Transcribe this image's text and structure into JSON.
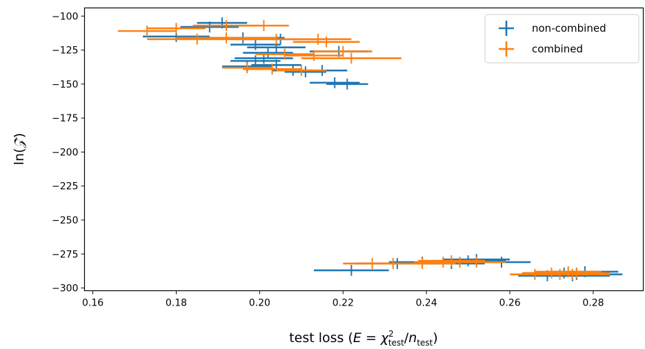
{
  "chart_data": {
    "type": "scatter",
    "title": "",
    "xlabel": {
      "prefix": "test loss (",
      "E": "E",
      "eq": " = ",
      "chi": "χ",
      "sup": "2",
      "sub1": "test",
      "slash": "/",
      "n": "n",
      "sub2": "test",
      "suffix": ")"
    },
    "ylabel": {
      "prefix": "ln(",
      "Z": "𝒵",
      "suffix": ")"
    },
    "xlim": [
      0.158,
      0.292
    ],
    "ylim": [
      -302,
      -94
    ],
    "xticks": [
      0.16,
      0.18,
      0.2,
      0.22,
      0.24,
      0.26,
      0.28
    ],
    "xtick_labels": [
      "0.16",
      "0.18",
      "0.20",
      "0.22",
      "0.24",
      "0.26",
      "0.28"
    ],
    "yticks": [
      -100,
      -125,
      -150,
      -175,
      -200,
      -225,
      -250,
      -275,
      -300
    ],
    "ytick_labels": [
      "−100",
      "−125",
      "−150",
      "−175",
      "−200",
      "−225",
      "−250",
      "−275",
      "−300"
    ],
    "grid": false,
    "legend_position": "top-right",
    "series": [
      {
        "name": "non-combined",
        "color": "#1f77b4",
        "points": [
          {
            "x": 0.191,
            "y": -105,
            "xerr": 0.006,
            "yerr": 2
          },
          {
            "x": 0.188,
            "y": -108,
            "xerr": 0.007,
            "yerr": 2
          },
          {
            "x": 0.18,
            "y": -115,
            "xerr": 0.008,
            "yerr": 2
          },
          {
            "x": 0.196,
            "y": -116,
            "xerr": 0.01,
            "yerr": 2
          },
          {
            "x": 0.205,
            "y": -117,
            "xerr": 0.009,
            "yerr": 2
          },
          {
            "x": 0.199,
            "y": -121,
            "xerr": 0.006,
            "yerr": 2
          },
          {
            "x": 0.204,
            "y": -123,
            "xerr": 0.007,
            "yerr": 2
          },
          {
            "x": 0.219,
            "y": -126,
            "xerr": 0.007,
            "yerr": 2
          },
          {
            "x": 0.202,
            "y": -127,
            "xerr": 0.006,
            "yerr": 2
          },
          {
            "x": 0.201,
            "y": -131,
            "xerr": 0.007,
            "yerr": 2
          },
          {
            "x": 0.199,
            "y": -133,
            "xerr": 0.006,
            "yerr": 2
          },
          {
            "x": 0.197,
            "y": -137,
            "xerr": 0.006,
            "yerr": 2
          },
          {
            "x": 0.204,
            "y": -136,
            "xerr": 0.006,
            "yerr": 2
          },
          {
            "x": 0.208,
            "y": -140,
            "xerr": 0.005,
            "yerr": 2
          },
          {
            "x": 0.215,
            "y": -140,
            "xerr": 0.006,
            "yerr": 2
          },
          {
            "x": 0.211,
            "y": -141,
            "xerr": 0.005,
            "yerr": 2
          },
          {
            "x": 0.218,
            "y": -149,
            "xerr": 0.006,
            "yerr": 2
          },
          {
            "x": 0.221,
            "y": -150,
            "xerr": 0.005,
            "yerr": 2
          },
          {
            "x": 0.222,
            "y": -287,
            "xerr": 0.009,
            "yerr": 2
          },
          {
            "x": 0.233,
            "y": -282,
            "xerr": 0.01,
            "yerr": 2
          },
          {
            "x": 0.239,
            "y": -281,
            "xerr": 0.008,
            "yerr": 2
          },
          {
            "x": 0.246,
            "y": -282,
            "xerr": 0.008,
            "yerr": 2
          },
          {
            "x": 0.25,
            "y": -280,
            "xerr": 0.009,
            "yerr": 2
          },
          {
            "x": 0.252,
            "y": -279,
            "xerr": 0.008,
            "yerr": 2
          },
          {
            "x": 0.258,
            "y": -281,
            "xerr": 0.007,
            "yerr": 2
          },
          {
            "x": 0.269,
            "y": -291,
            "xerr": 0.007,
            "yerr": 2
          },
          {
            "x": 0.273,
            "y": -289,
            "xerr": 0.01,
            "yerr": 2
          },
          {
            "x": 0.275,
            "y": -291,
            "xerr": 0.009,
            "yerr": 2
          },
          {
            "x": 0.278,
            "y": -288,
            "xerr": 0.008,
            "yerr": 2
          },
          {
            "x": 0.276,
            "y": -290,
            "xerr": 0.011,
            "yerr": 2
          }
        ]
      },
      {
        "name": "combined",
        "color": "#ff7f0e",
        "points": [
          {
            "x": 0.173,
            "y": -111,
            "xerr": 0.007,
            "yerr": 2
          },
          {
            "x": 0.18,
            "y": -109,
            "xerr": 0.007,
            "yerr": 2
          },
          {
            "x": 0.192,
            "y": -107,
            "xerr": 0.008,
            "yerr": 2
          },
          {
            "x": 0.201,
            "y": -107,
            "xerr": 0.006,
            "yerr": 2
          },
          {
            "x": 0.185,
            "y": -117,
            "xerr": 0.012,
            "yerr": 2
          },
          {
            "x": 0.192,
            "y": -116,
            "xerr": 0.012,
            "yerr": 2
          },
          {
            "x": 0.204,
            "y": -117,
            "xerr": 0.011,
            "yerr": 2
          },
          {
            "x": 0.214,
            "y": -117,
            "xerr": 0.008,
            "yerr": 2
          },
          {
            "x": 0.216,
            "y": -119,
            "xerr": 0.008,
            "yerr": 2
          },
          {
            "x": 0.206,
            "y": -128,
            "xerr": 0.007,
            "yerr": 2
          },
          {
            "x": 0.213,
            "y": -129,
            "xerr": 0.007,
            "yerr": 2
          },
          {
            "x": 0.22,
            "y": -126,
            "xerr": 0.007,
            "yerr": 2
          },
          {
            "x": 0.222,
            "y": -131,
            "xerr": 0.012,
            "yerr": 2
          },
          {
            "x": 0.197,
            "y": -138,
            "xerr": 0.006,
            "yerr": 2
          },
          {
            "x": 0.203,
            "y": -139,
            "xerr": 0.007,
            "yerr": 2
          },
          {
            "x": 0.21,
            "y": -140,
            "xerr": 0.006,
            "yerr": 2
          },
          {
            "x": 0.227,
            "y": -282,
            "xerr": 0.007,
            "yerr": 2
          },
          {
            "x": 0.232,
            "y": -282,
            "xerr": 0.008,
            "yerr": 2
          },
          {
            "x": 0.239,
            "y": -282,
            "xerr": 0.008,
            "yerr": 2
          },
          {
            "x": 0.244,
            "y": -281,
            "xerr": 0.007,
            "yerr": 2
          },
          {
            "x": 0.246,
            "y": -280,
            "xerr": 0.008,
            "yerr": 2
          },
          {
            "x": 0.248,
            "y": -281,
            "xerr": 0.007,
            "yerr": 2
          },
          {
            "x": 0.252,
            "y": -281,
            "xerr": 0.007,
            "yerr": 2
          },
          {
            "x": 0.266,
            "y": -290,
            "xerr": 0.006,
            "yerr": 2
          },
          {
            "x": 0.27,
            "y": -289,
            "xerr": 0.007,
            "yerr": 2
          },
          {
            "x": 0.272,
            "y": -290,
            "xerr": 0.007,
            "yerr": 2
          },
          {
            "x": 0.274,
            "y": -288,
            "xerr": 0.008,
            "yerr": 2
          },
          {
            "x": 0.275,
            "y": -290,
            "xerr": 0.009,
            "yerr": 2
          },
          {
            "x": 0.276,
            "y": -289,
            "xerr": 0.008,
            "yerr": 2
          }
        ]
      }
    ]
  }
}
